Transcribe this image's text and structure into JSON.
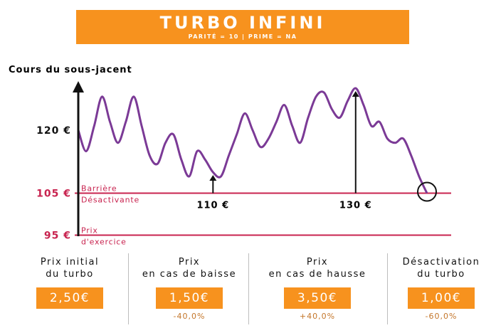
{
  "banner": {
    "title": "TURBO INFINI",
    "subtitle": "PARITÉ = 10 | PRIME = NA"
  },
  "colors": {
    "accent": "#f7921e",
    "curve": "#7b3a96",
    "barrier": "#c8234f",
    "axis": "#111111"
  },
  "chart_data": {
    "type": "line",
    "ylabel": "Cours du sous-jacent",
    "y_ticks": [
      "120 €",
      "105 €",
      "95 €"
    ],
    "y_tick_values": [
      120,
      105,
      95
    ],
    "ylim": [
      93,
      145
    ],
    "series": [
      {
        "values": [
          120,
          115,
          121,
          128,
          122,
          117,
          122,
          128,
          121,
          114,
          112,
          117,
          119,
          113,
          109,
          115,
          113,
          110,
          109,
          114,
          119,
          124,
          120,
          116,
          118,
          122,
          126,
          121,
          117,
          123,
          128,
          129,
          125,
          123,
          127,
          130,
          126,
          121,
          122,
          118,
          117,
          118,
          114,
          109,
          105
        ]
      }
    ],
    "hlines": [
      {
        "value": 105,
        "label_1": "Barrière",
        "label_2": "Désactivante"
      },
      {
        "value": 95,
        "label_1": "Prix",
        "label_2": "d'exercice"
      }
    ],
    "annotations": [
      {
        "text": "110 €",
        "value": 110
      },
      {
        "text": "130 €",
        "value": 130
      }
    ]
  },
  "summary": [
    {
      "title": "Prix initial\ndu turbo",
      "price": "2,50€",
      "change": ""
    },
    {
      "title": "Prix\nen cas de baisse",
      "price": "1,50€",
      "change": "-40,0%"
    },
    {
      "title": "Prix\nen cas de hausse",
      "price": "3,50€",
      "change": "+40,0%"
    },
    {
      "title": "Désactivation\ndu turbo",
      "price": "1,00€",
      "change": "-60,0%"
    }
  ]
}
